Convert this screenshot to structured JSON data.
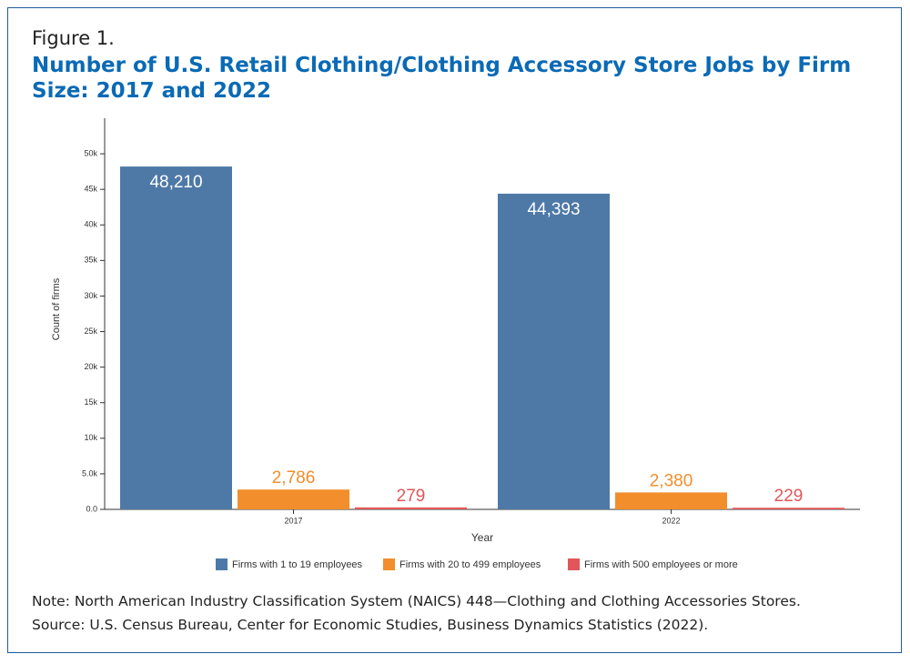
{
  "figure_label": "Figure 1.",
  "chart_data": {
    "type": "bar",
    "title": "Number of U.S. Retail Clothing/Clothing Accessory Store Jobs by Firm Size: 2017 and 2022",
    "x_label": "Year",
    "y_label": "Count of firms",
    "categories": [
      "2017",
      "2022"
    ],
    "series": [
      {
        "name": "Firms with 1 to 19 employees",
        "color": "#4e79a7",
        "values": [
          48210,
          44393
        ],
        "value_labels": [
          "48,210",
          "44,393"
        ]
      },
      {
        "name": "Firms with 20 to 499 employees",
        "color": "#f28e2b",
        "values": [
          2786,
          2380
        ],
        "value_labels": [
          "2,786",
          "2,380"
        ]
      },
      {
        "name": "Firms with 500 employees or more",
        "color": "#e15759",
        "values": [
          279,
          229
        ],
        "value_labels": [
          "279",
          "229"
        ]
      }
    ],
    "ylim": [
      0,
      55000
    ],
    "yticks": [
      {
        "value": 0,
        "label": "0.0"
      },
      {
        "value": 5000,
        "label": "5.0k"
      },
      {
        "value": 10000,
        "label": "10k"
      },
      {
        "value": 15000,
        "label": "15k"
      },
      {
        "value": 20000,
        "label": "20k"
      },
      {
        "value": 25000,
        "label": "25k"
      },
      {
        "value": 30000,
        "label": "30k"
      },
      {
        "value": 35000,
        "label": "35k"
      },
      {
        "value": 40000,
        "label": "40k"
      },
      {
        "value": 45000,
        "label": "45k"
      },
      {
        "value": 50000,
        "label": "50k"
      }
    ],
    "legend": "bottom"
  },
  "notes": [
    "Note: North American Industry Classification System (NAICS) 448—Clothing and Clothing Accessories Stores.",
    "Source: U.S. Census Bureau, Center for Economic Studies, Business Dynamics Statistics (2022)."
  ]
}
